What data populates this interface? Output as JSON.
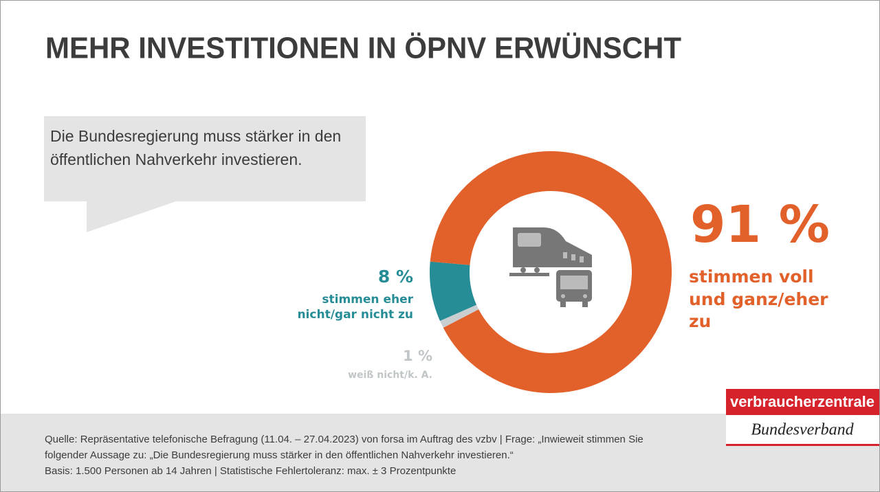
{
  "chart_data": {
    "type": "donut",
    "title": "MEHR INVESTITIONEN IN ÖPNV ERWÜNSCHT",
    "statement": "Die Bundesregierung muss stärker in den öffentlichen Nahverkehr investieren.",
    "categories": [
      "stimmen voll und ganz/eher zu",
      "stimmen eher nicht/gar nicht zu",
      "weiß nicht/k. A."
    ],
    "values": [
      91,
      8,
      1
    ],
    "value_labels": [
      "91 %",
      "8 %",
      "1 %"
    ],
    "colors": [
      "#e2612b",
      "#268c96",
      "#c9cfd1"
    ],
    "source": [
      "Quelle: Repräsentative telefonische Befragung (11.04. – 27.04.2023) von forsa im Auftrag des vzbv | Frage: „Inwieweit stimmen Sie",
      "folgender Aussage zu: „Die Bundesregierung muss stärker in den öffentlichen Nahverkehr investieren.“",
      "Basis: 1.500 Personen ab 14 Jahren | Statistische Fehlertoleranz: max. ± 3 Prozentpunkte"
    ],
    "logo": {
      "top": "verbraucherzentrale",
      "bottom": "Bundesverband"
    }
  }
}
